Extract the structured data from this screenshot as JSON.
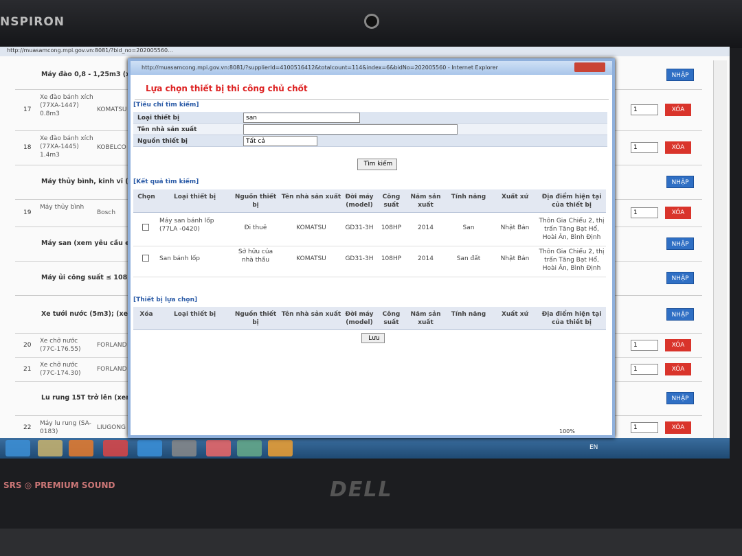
{
  "laptop": {
    "model": "NSPIRON",
    "sound": "SRS ◎ PREMIUM SOUND",
    "logo": "DELL"
  },
  "background_page": {
    "url": "http://muasamcong.mpi.gov.vn:8081/?bid_no=202005560...",
    "add_button": "NHẬP",
    "delete_button": "XÓA",
    "rows": [
      {
        "title": "Máy đào 0,8 - 1,25m3 (xem..."
      },
      {
        "no": 17,
        "name": "Xe đào bánh xích (77XA-1447) 0.8m3",
        "maker": "KOMATSU",
        "qty": 1
      },
      {
        "no": 18,
        "name": "Xe đào bánh xích (77XA-1445) 1.4m3",
        "maker": "KOBELCO",
        "qty": 1
      },
      {
        "title": "Máy thủy bình, kinh vĩ (hơ..."
      },
      {
        "no": 19,
        "name": "Máy thủy bình",
        "maker": "Bosch",
        "qty": 1
      },
      {
        "title": "Máy san (xem yêu cầu e-HS..."
      },
      {
        "title": "Máy ủi công suất ≤ 108 CV..."
      },
      {
        "title": "Xe tưới nước (5m3); (xem..."
      },
      {
        "no": 20,
        "name": "Xe chở nước (77C-176.55)",
        "maker": "FORLAND",
        "qty": 1
      },
      {
        "no": 21,
        "name": "Xe chở nước (77C-174.30)",
        "maker": "FORLAND",
        "qty": 1
      },
      {
        "title": "Lu rung 15T trở lên (xem y..."
      },
      {
        "no": 22,
        "name": "Máy lu rung (SA-0183)",
        "maker": "LIUGONG",
        "qty": 1
      }
    ]
  },
  "popup": {
    "url": "http://muasamcong.mpi.gov.vn:8081/?supplierId=4100516412&totalcount=114&index=6&bidNo=202005560 - Internet Explorer",
    "title": "Lựa chọn thiết bị thi công chủ chốt",
    "search_section": "[Tiêu chí tìm kiếm]",
    "fields": [
      {
        "label": "Loại thiết bị",
        "value": "san"
      },
      {
        "label": "Tên nhà sản xuất"
      },
      {
        "label": "Nguồn thiết bị",
        "value": "Tất cả"
      }
    ],
    "search_button": "Tìm kiếm",
    "results_section": "[Kết quả tìm kiếm]",
    "results_headers": [
      "Chọn",
      "Loại thiết bị",
      "Nguồn thiết bị",
      "Tên nhà sản xuất",
      "Đời máy (model)",
      "Công suất",
      "Năm sản xuất",
      "Tính năng",
      "Xuất xứ",
      "Địa điểm hiện tại của thiết bị"
    ],
    "results_rows": [
      [
        "Máy san bánh lốp (77LA -0420)",
        "Đi thuê",
        "KOMATSU",
        "GD31-3H",
        "108HP",
        "2014",
        "San",
        "Nhật Bản",
        "Thôn Gia Chiểu 2, thị trấn Tăng Bạt Hổ, Hoài Ân, Bình Định"
      ],
      [
        "San bánh lốp",
        "Sở hữu của nhà thầu",
        "KOMATSU",
        "GD31-3H",
        "108HP",
        "2014",
        "San đất",
        "Nhật Bản",
        "Thôn Gia Chiểu 2, thị trấn Tăng Bạt Hổ, Hoài Ân, Bình Định"
      ]
    ],
    "selected_section": "[Thiết bị lựa chọn]",
    "selected_headers": [
      "Xóa",
      "Loại thiết bị",
      "Nguồn thiết bị",
      "Tên nhà sản xuất",
      "Đời máy (model)",
      "Công suất",
      "Năm sản xuất",
      "Tính năng",
      "Xuất xứ",
      "Địa điểm hiện tại của thiết bị"
    ],
    "save_button": "Lưu",
    "zoom": "100%"
  },
  "taskbar": {
    "language": "EN"
  }
}
